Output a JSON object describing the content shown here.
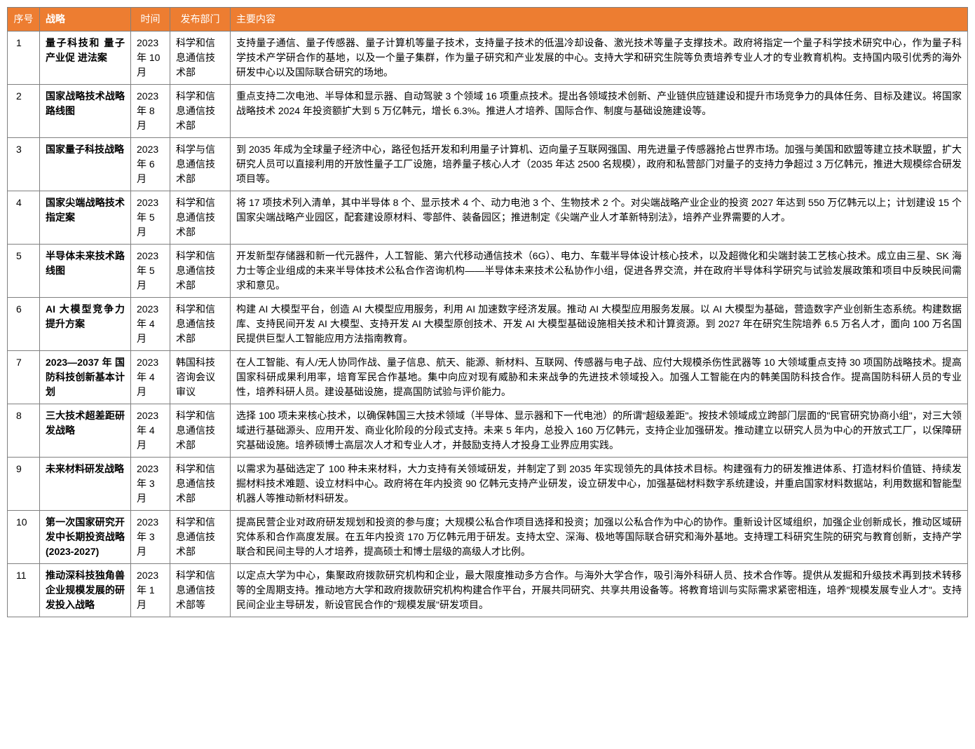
{
  "header_bg": "#ed7d31",
  "header_color": "#ffffff",
  "columns": [
    "序号",
    "战略",
    "时间",
    "发布部门",
    "主要内容"
  ],
  "rows": [
    {
      "num": "1",
      "strategy": "量子科技和 量子产业促 进法案",
      "time": "2023 年 10 月",
      "dept": "科学和信息通信技术部",
      "content": "支持量子通信、量子传感器、量子计算机等量子技术，支持量子技术的低温冷却设备、激光技术等量子支撑技术。政府将指定一个量子科学技术研究中心，作为量子科学技术产学研合作的基地，以及一个量子集群，作为量子研究和产业发展的中心。支持大学和研究生院等负责培养专业人才的专业教育机构。支持国内吸引优秀的海外研发中心以及国际联合研究的场地。"
    },
    {
      "num": "2",
      "strategy": "国家战略技术战略路线图",
      "time": "2023 年 8 月",
      "dept": "科学和信息通信技术部",
      "content": "重点支持二次电池、半导体和显示器、自动驾驶 3 个领域 16 项重点技术。提出各领域技术创新、产业链供应链建设和提升市场竞争力的具体任务、目标及建议。将国家战略技术 2024 年投资额扩大到 5 万亿韩元，增长 6.3%。推进人才培养、国际合作、制度与基础设施建设等。"
    },
    {
      "num": "3",
      "strategy": "国家量子科技战略",
      "time": "2023 年 6 月",
      "dept": "科学与信息通信技术部",
      "content": "到 2035 年成为全球量子经济中心，路径包括开发和利用量子计算机、迈向量子互联网强国、用先进量子传感器抢占世界市场。加强与美国和欧盟等建立技术联盟，扩大研究人员可以直接利用的开放性量子工厂设施，培养量子核心人才（2035 年达 2500 名规模），政府和私营部门对量子的支持力争超过 3 万亿韩元，推进大规模综合研发项目等。"
    },
    {
      "num": "4",
      "strategy": "国家尖端战略技术指定案",
      "time": "2023 年 5 月",
      "dept": "科学和信息通信技术部",
      "content": "将 17 项技术列入清单，其中半导体 8 个、显示技术 4 个、动力电池 3 个、生物技术 2 个。对尖端战略产业企业的投资 2027 年达到 550 万亿韩元以上；计划建设 15 个国家尖端战略产业园区，配套建设原材料、零部件、装备园区；推进制定《尖端产业人才革新特别法》，培养产业界需要的人才。"
    },
    {
      "num": "5",
      "strategy": "半导体未来技术路线图",
      "time": "2023 年 5 月",
      "dept": "科学和信息通信技术部",
      "content": "开发新型存储器和新一代元器件，人工智能、第六代移动通信技术（6G）、电力、车载半导体设计核心技术，以及超微化和尖端封装工艺核心技术。成立由三星、SK 海力士等企业组成的未来半导体技术公私合作咨询机构——半导体未来技术公私协作小组，促进各界交流，并在政府半导体科学研究与试验发展政策和项目中反映民间需求和意见。"
    },
    {
      "num": "6",
      "strategy": "AI 大模型竞争力提升方案",
      "time": "2023 年 4 月",
      "dept": "科学和信息通信技术部",
      "content": "构建 AI 大模型平台，创造 AI 大模型应用服务，利用 AI 加速数字经济发展。推动 AI 大模型应用服务发展。以 AI 大模型为基础，营造数字产业创新生态系统。构建数据库、支持民间开发 AI 大模型、支持开发 AI 大模型原创技术、开发 AI 大模型基础设施相关技术和计算资源。到 2027 年在研究生院培养 6.5 万名人才，面向 100 万名国民提供巨型人工智能应用方法指南教育。"
    },
    {
      "num": "7",
      "strategy": "2023—2037年国防科技创新基本计划",
      "time": "2023 年 4 月",
      "dept": "韩国科技咨询会议审议",
      "content": "在人工智能、有人/无人协同作战、量子信息、航天、能源、新材料、互联网、传感器与电子战、应付大规模杀伤性武器等 10 大领域重点支持 30 项国防战略技术。提高国家科研成果利用率，培育军民合作基地。集中向应对现有威胁和未来战争的先进技术领域投入。加强人工智能在内的韩美国防科技合作。提高国防科研人员的专业性，培养科研人员。建设基础设施，提高国防试验与评价能力。"
    },
    {
      "num": "8",
      "strategy": "三大技术超差距研发战略",
      "time": "2023 年 4 月",
      "dept": "科学和信息通信技术部",
      "content": "选择 100 项未来核心技术，以确保韩国三大技术领域（半导体、显示器和下一代电池）的所谓\"超级差距\"。按技术领域成立跨部门层面的\"民官研究协商小组\"，对三大领域进行基础源头、应用开发、商业化阶段的分段式支持。未来 5 年内，总投入 160 万亿韩元，支持企业加强研发。推动建立以研究人员为中心的开放式工厂，以保障研究基础设施。培养硕博士高层次人才和专业人才，并鼓励支持人才投身工业界应用实践。"
    },
    {
      "num": "9",
      "strategy": "未来材料研发战略",
      "time": "2023 年 3 月",
      "dept": "科学和信息通信技术部",
      "content": "以需求为基础选定了 100 种未来材料，大力支持有关领域研发，并制定了到 2035 年实现领先的具体技术目标。构建强有力的研发推进体系、打造材料价值链、持续发掘材料技术难题、设立材料中心。政府将在年内投资 90 亿韩元支持产业研发，设立研发中心，加强基础材料数字系统建设，并重启国家材料数据站，利用数据和智能型机器人等推动新材料研发。"
    },
    {
      "num": "10",
      "strategy": "第一次国家研究开发中长期投资战略(2023-2027)",
      "time": "2023 年 3 月",
      "dept": "科学和信息通信技术部",
      "content": "提高民营企业对政府研发规划和投资的参与度；大规模公私合作项目选择和投资；加强以公私合作为中心的协作。重新设计区域组织，加强企业创新成长，推动区域研究体系和合作高度发展。在五年内投资 170 万亿韩元用于研发。支持太空、深海、极地等国际联合研究和海外基地。支持理工科研究生院的研究与教育创新，支持产学联合和民间主导的人才培养，提高硕士和博士层级的高级人才比例。"
    },
    {
      "num": "11",
      "strategy": "推动深科技独角兽企业规模发展的研发投入战略",
      "time": "2023 年 1 月",
      "dept": "科学和信息通信技术部等",
      "content": "以定点大学为中心，集聚政府拨款研究机构和企业，最大限度推动多方合作。与海外大学合作，吸引海外科研人员、技术合作等。提供从发掘和升级技术再到技术转移等的全周期支持。推动地方大学和政府拨款研究机构构建合作平台，开展共同研究、共享共用设备等。将教育培训与实际需求紧密相连，培养\"规模发展专业人才\"。支持民间企业主导研发，新设官民合作的\"规模发展\"研发项目。"
    }
  ]
}
